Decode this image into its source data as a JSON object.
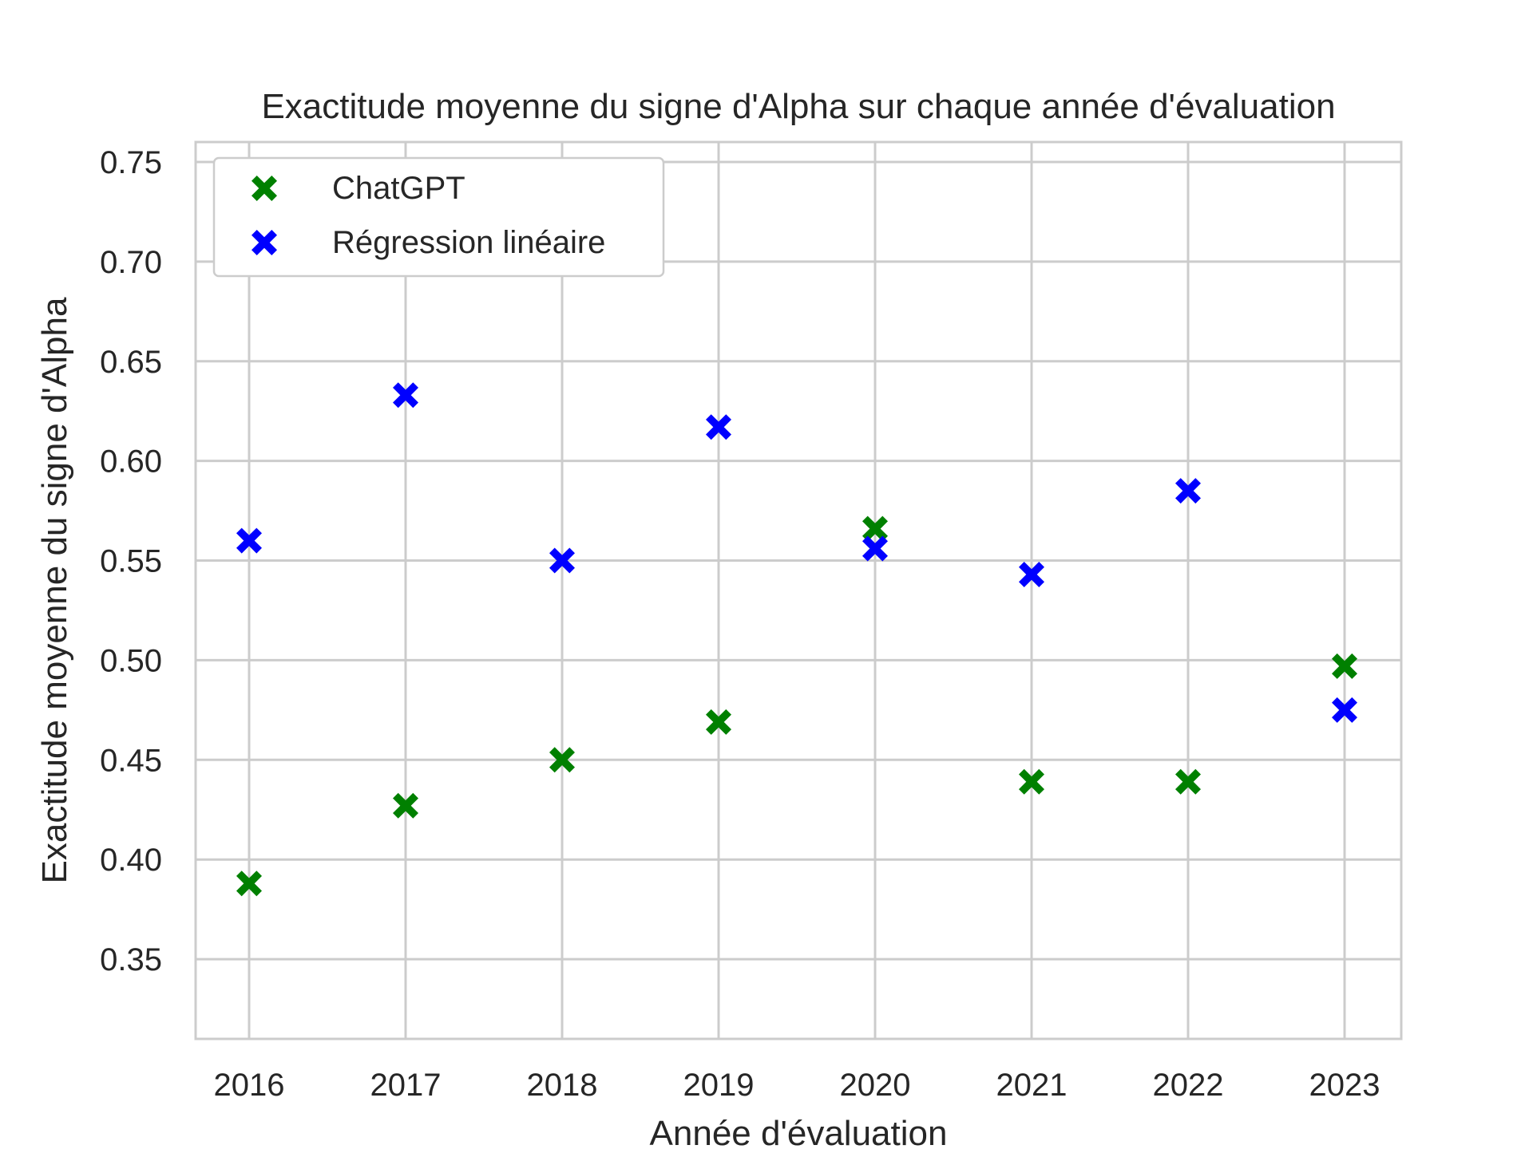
{
  "chart_data": {
    "type": "scatter",
    "title": "Exactitude moyenne du signe d'Alpha sur chaque année d'évaluation",
    "xlabel": "Année d'évaluation",
    "ylabel": "Exactitude moyenne du signe d'Alpha",
    "x": [
      "2016",
      "2017",
      "2018",
      "2019",
      "2020",
      "2021",
      "2022",
      "2023"
    ],
    "ylim": [
      0.31,
      0.76
    ],
    "yticks": [
      "0.35",
      "0.40",
      "0.45",
      "0.50",
      "0.55",
      "0.60",
      "0.65",
      "0.70",
      "0.75"
    ],
    "grid": true,
    "legend_position": "top-left",
    "marker": "X",
    "series": [
      {
        "name": "ChatGPT",
        "color": "#008000",
        "values": [
          0.388,
          0.427,
          0.45,
          0.469,
          0.566,
          0.439,
          0.439,
          0.497
        ]
      },
      {
        "name": "Régression linéaire",
        "color": "#0000ff",
        "values": [
          0.56,
          0.633,
          0.55,
          0.617,
          0.556,
          0.543,
          0.585,
          0.475
        ]
      }
    ]
  }
}
